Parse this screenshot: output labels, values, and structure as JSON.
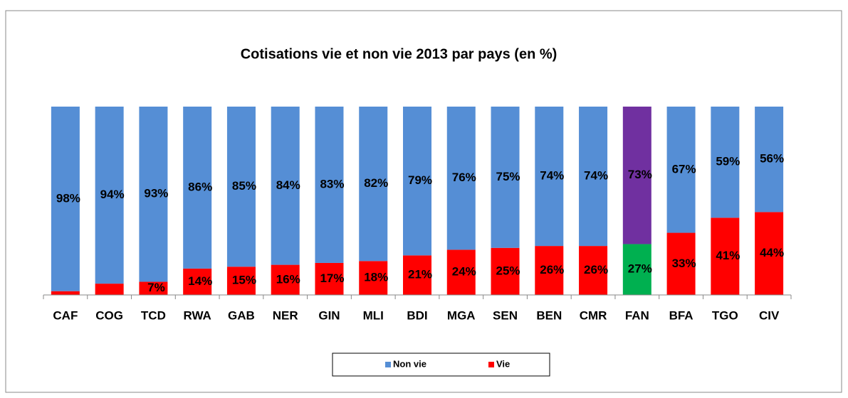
{
  "chart_data": {
    "type": "stacked_bar",
    "title": "Cotisations vie et non vie 2013 par pays (en %)",
    "categories": [
      "CAF",
      "COG",
      "TCD",
      "RWA",
      "GAB",
      "NER",
      "GIN",
      "MLI",
      "BDI",
      "MGA",
      "SEN",
      "BEN",
      "CMR",
      "FAN",
      "BFA",
      "TGO",
      "CIV"
    ],
    "series": [
      {
        "name": "Non vie",
        "color": "#558ed5",
        "colors": [
          "#558ed5",
          "#558ed5",
          "#558ed5",
          "#558ed5",
          "#558ed5",
          "#558ed5",
          "#558ed5",
          "#558ed5",
          "#558ed5",
          "#558ed5",
          "#558ed5",
          "#558ed5",
          "#558ed5",
          "#7030a0",
          "#558ed5",
          "#558ed5",
          "#558ed5"
        ],
        "values": [
          98,
          94,
          93,
          86,
          85,
          84,
          83,
          82,
          79,
          76,
          75,
          74,
          74,
          73,
          67,
          59,
          56
        ],
        "value_labels": [
          "98%",
          "94%",
          "93%",
          "86%",
          "85%",
          "84%",
          "83%",
          "82%",
          "79%",
          "76%",
          "75%",
          "74%",
          "74%",
          "73%",
          "67%",
          "59%",
          "56%"
        ]
      },
      {
        "name": "Vie",
        "color": "#ff0000",
        "colors": [
          "#ff0000",
          "#ff0000",
          "#ff0000",
          "#ff0000",
          "#ff0000",
          "#ff0000",
          "#ff0000",
          "#ff0000",
          "#ff0000",
          "#ff0000",
          "#ff0000",
          "#ff0000",
          "#ff0000",
          "#00b050",
          "#ff0000",
          "#ff0000",
          "#ff0000"
        ],
        "values": [
          2,
          6,
          7,
          14,
          15,
          16,
          17,
          18,
          21,
          24,
          25,
          26,
          26,
          27,
          33,
          41,
          44
        ],
        "value_labels": [
          null,
          null,
          "7%",
          "14%",
          "15%",
          "16%",
          "17%",
          "18%",
          "21%",
          "24%",
          "25%",
          "26%",
          "26%",
          "27%",
          "33%",
          "41%",
          "44%"
        ]
      }
    ],
    "ylim": [
      0,
      100
    ],
    "legend": "bottom"
  }
}
